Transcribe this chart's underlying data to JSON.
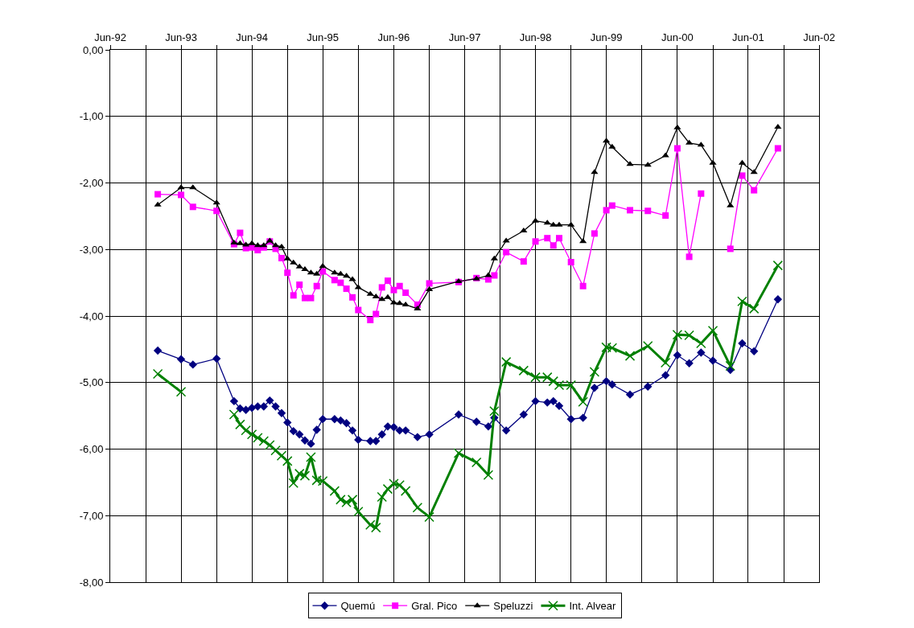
{
  "chart_data": {
    "type": "line",
    "x": [
      "1993-02",
      "1993-06",
      "1993-08",
      "1993-12",
      "1994-03",
      "1994-04",
      "1994-05",
      "1994-06",
      "1994-07",
      "1994-08",
      "1994-09",
      "1994-10",
      "1994-11",
      "1994-12",
      "1995-01",
      "1995-02",
      "1995-03",
      "1995-04",
      "1995-05",
      "1995-06",
      "1995-08",
      "1995-09",
      "1995-10",
      "1995-11",
      "1995-12",
      "1996-02",
      "1996-03",
      "1996-04",
      "1996-05",
      "1996-06",
      "1996-07",
      "1996-08",
      "1996-10",
      "1996-12",
      "1997-05",
      "1997-08",
      "1997-10",
      "1997-11",
      "1998-01",
      "1998-04",
      "1998-06",
      "1998-08",
      "1998-09",
      "1998-10",
      "1998-12",
      "1999-02",
      "1999-04",
      "1999-06",
      "1999-07",
      "1999-10",
      "2000-01",
      "2000-04",
      "2000-06",
      "2000-08",
      "2000-10",
      "2000-12",
      "2001-03",
      "2001-05",
      "2001-07",
      "2001-11"
    ],
    "series": [
      {
        "name": "Quemú",
        "color": "#000080",
        "marker": "diamond",
        "values": [
          -4.52,
          -4.65,
          -4.73,
          -4.64,
          -5.28,
          -5.39,
          -5.41,
          -5.38,
          -5.36,
          -5.36,
          -5.27,
          -5.36,
          -5.46,
          -5.6,
          -5.73,
          -5.78,
          -5.87,
          -5.92,
          -5.71,
          -5.55,
          -5.55,
          -5.57,
          -5.61,
          -5.72,
          -5.86,
          -5.88,
          -5.88,
          -5.78,
          -5.66,
          -5.67,
          -5.72,
          -5.72,
          -5.82,
          -5.78,
          -5.48,
          -5.59,
          -5.66,
          -5.53,
          -5.72,
          -5.48,
          -5.28,
          -5.3,
          -5.28,
          -5.35,
          -5.55,
          -5.53,
          -5.08,
          -4.98,
          -5.03,
          -5.18,
          -5.06,
          -4.89,
          -4.59,
          -4.71,
          -4.55,
          -4.67,
          -4.81,
          -4.41,
          -4.53,
          -3.75
        ]
      },
      {
        "name": "Gral. Pico",
        "color": "#ff00ff",
        "marker": "square",
        "values": [
          -2.17,
          -2.18,
          -2.36,
          -2.42,
          -2.92,
          -2.75,
          -2.98,
          -2.97,
          -3.01,
          -2.97,
          -2.88,
          -2.99,
          -3.13,
          -3.35,
          -3.69,
          -3.53,
          -3.73,
          -3.73,
          -3.55,
          -3.33,
          -3.46,
          -3.5,
          -3.59,
          -3.72,
          -3.91,
          -4.06,
          -3.97,
          -3.57,
          -3.47,
          -3.61,
          -3.55,
          -3.65,
          -3.83,
          -3.51,
          -3.49,
          -3.43,
          -3.45,
          -3.39,
          -3.04,
          -3.18,
          -2.88,
          -2.83,
          -2.94,
          -2.83,
          -3.19,
          -3.55,
          -2.76,
          -2.41,
          -2.34,
          -2.41,
          -2.42,
          -2.49,
          -1.48,
          -3.11,
          -2.16,
          null,
          -2.99,
          -1.89,
          -2.11,
          -1.48
        ]
      },
      {
        "name": "Speluzzi",
        "color": "#000000",
        "marker": "triangle",
        "values": [
          -2.33,
          -2.07,
          -2.07,
          -2.3,
          -2.9,
          -2.91,
          -2.93,
          -2.91,
          -2.94,
          -2.94,
          -2.87,
          -2.94,
          -2.96,
          -3.14,
          -3.2,
          -3.26,
          -3.3,
          -3.35,
          -3.37,
          -3.25,
          -3.35,
          -3.37,
          -3.4,
          -3.45,
          -3.57,
          -3.67,
          -3.71,
          -3.75,
          -3.72,
          -3.8,
          -3.81,
          -3.83,
          -3.89,
          -3.6,
          -3.48,
          -3.44,
          -3.39,
          -3.14,
          -2.87,
          -2.72,
          -2.57,
          -2.6,
          -2.63,
          -2.63,
          -2.63,
          -2.88,
          -1.84,
          -1.37,
          -1.46,
          -1.72,
          -1.73,
          -1.59,
          -1.17,
          -1.4,
          -1.43,
          -1.7,
          -2.34,
          -1.7,
          -1.84,
          -1.16
        ]
      },
      {
        "name": "Int. Alvear",
        "color": "#008000",
        "marker": "cross",
        "values": [
          -4.87,
          -5.14,
          null,
          null,
          -5.48,
          -5.63,
          -5.72,
          -5.78,
          -5.83,
          -5.88,
          -5.94,
          -6.02,
          -6.1,
          -6.18,
          -6.51,
          -6.37,
          -6.4,
          -6.12,
          -6.47,
          -6.48,
          -6.63,
          -6.76,
          -6.8,
          -6.76,
          -6.94,
          -7.14,
          -7.18,
          -6.72,
          -6.6,
          -6.52,
          -6.54,
          -6.63,
          -6.88,
          -7.02,
          -6.06,
          -6.2,
          -6.39,
          -5.43,
          -4.69,
          -4.82,
          -4.92,
          -4.92,
          -4.98,
          -5.04,
          -5.04,
          -5.29,
          -4.84,
          -4.47,
          -4.48,
          -4.6,
          -4.45,
          -4.7,
          -4.28,
          -4.29,
          -4.41,
          -4.22,
          -4.75,
          -3.78,
          -3.89,
          -3.24
        ]
      }
    ],
    "xlim": [
      "1992-06",
      "2002-06"
    ],
    "xticks": [
      {
        "value": "1992-06",
        "label": "Jun-92"
      },
      {
        "value": "1992-12",
        "label": null
      },
      {
        "value": "1993-06",
        "label": "Jun-93"
      },
      {
        "value": "1993-12",
        "label": null
      },
      {
        "value": "1994-06",
        "label": "Jun-94"
      },
      {
        "value": "1994-12",
        "label": null
      },
      {
        "value": "1995-06",
        "label": "Jun-95"
      },
      {
        "value": "1995-12",
        "label": null
      },
      {
        "value": "1996-06",
        "label": "Jun-96"
      },
      {
        "value": "1996-12",
        "label": null
      },
      {
        "value": "1997-06",
        "label": "Jun-97"
      },
      {
        "value": "1997-12",
        "label": null
      },
      {
        "value": "1998-06",
        "label": "Jun-98"
      },
      {
        "value": "1998-12",
        "label": null
      },
      {
        "value": "1999-06",
        "label": "Jun-99"
      },
      {
        "value": "1999-12",
        "label": null
      },
      {
        "value": "2000-06",
        "label": "Jun-00"
      },
      {
        "value": "2000-12",
        "label": null
      },
      {
        "value": "2001-06",
        "label": "Jun-01"
      },
      {
        "value": "2001-12",
        "label": null
      },
      {
        "value": "2002-06",
        "label": "Jun-02"
      }
    ],
    "ylim": [
      -8,
      0
    ],
    "yticks": [
      {
        "value": 0,
        "label": "0,00"
      },
      {
        "value": -1,
        "label": "-1,00"
      },
      {
        "value": -2,
        "label": "-2,00"
      },
      {
        "value": -3,
        "label": "-3,00"
      },
      {
        "value": -4,
        "label": "-4,00"
      },
      {
        "value": -5,
        "label": "-5,00"
      },
      {
        "value": -6,
        "label": "-6,00"
      },
      {
        "value": -7,
        "label": "-7,00"
      },
      {
        "value": -8,
        "label": "-8,00"
      }
    ],
    "grid": true,
    "legend": "bottom"
  }
}
